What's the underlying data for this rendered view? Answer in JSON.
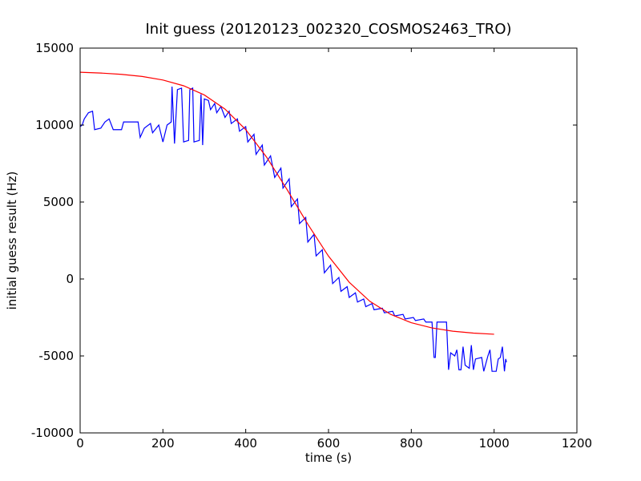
{
  "chart_data": {
    "type": "line",
    "title": "Init guess (20120123_002320_COSMOS2463_TRO)",
    "xlabel": "time (s)",
    "ylabel": "initial guess result (Hz)",
    "xlim": [
      0,
      1200
    ],
    "xticks": [
      0,
      200,
      400,
      600,
      800,
      1000,
      1200
    ],
    "ylim": [
      -10000,
      15000
    ],
    "yticks": [
      -10000,
      -5000,
      0,
      5000,
      10000,
      15000
    ],
    "grid": false,
    "series": [
      {
        "color": "#0000ff",
        "x": [
          0,
          5,
          10,
          20,
          30,
          35,
          50,
          60,
          70,
          80,
          100,
          105,
          140,
          145,
          155,
          170,
          175,
          190,
          200,
          210,
          220,
          222,
          228,
          235,
          245,
          250,
          262,
          265,
          272,
          275,
          288,
          292,
          296,
          300,
          310,
          315,
          325,
          330,
          340,
          350,
          360,
          365,
          380,
          385,
          400,
          405,
          420,
          425,
          440,
          445,
          460,
          470,
          485,
          490,
          505,
          510,
          525,
          530,
          545,
          550,
          565,
          570,
          585,
          590,
          605,
          610,
          625,
          630,
          645,
          650,
          665,
          670,
          685,
          690,
          705,
          710,
          730,
          735,
          755,
          760,
          780,
          785,
          805,
          810,
          830,
          835,
          850,
          855,
          858,
          862,
          885,
          890,
          895,
          905,
          910,
          915,
          920,
          925,
          930,
          940,
          945,
          950,
          955,
          970,
          975,
          985,
          990,
          995,
          1005,
          1010,
          1015,
          1020,
          1025,
          1028,
          1030
        ],
        "values": [
          9900,
          10000,
          10400,
          10800,
          10900,
          9700,
          9800,
          10200,
          10400,
          9700,
          9700,
          10200,
          10200,
          9200,
          9800,
          10100,
          9500,
          10000,
          8900,
          10000,
          10200,
          12500,
          8800,
          12300,
          12400,
          8900,
          9000,
          12300,
          12400,
          8900,
          9000,
          12000,
          8700,
          11700,
          11600,
          11000,
          11400,
          10800,
          11200,
          10500,
          10900,
          10100,
          10400,
          9600,
          9900,
          8900,
          9400,
          8100,
          8700,
          7400,
          8000,
          6600,
          7200,
          5900,
          6500,
          4700,
          5200,
          3600,
          4000,
          2400,
          2900,
          1500,
          1900,
          400,
          900,
          -300,
          100,
          -800,
          -500,
          -1200,
          -900,
          -1500,
          -1300,
          -1800,
          -1600,
          -2000,
          -1900,
          -2200,
          -2100,
          -2400,
          -2300,
          -2600,
          -2500,
          -2700,
          -2600,
          -2800,
          -2800,
          -5100,
          -5100,
          -2800,
          -2800,
          -5900,
          -4800,
          -5000,
          -4600,
          -5900,
          -5900,
          -4400,
          -5600,
          -5800,
          -4300,
          -5900,
          -5200,
          -5100,
          -6000,
          -5000,
          -4600,
          -6000,
          -6000,
          -5200,
          -5100,
          -4400,
          -6000,
          -5200,
          -5400
        ]
      },
      {
        "color": "#ff0000",
        "x": [
          0,
          50,
          100,
          150,
          200,
          250,
          300,
          350,
          400,
          450,
          500,
          550,
          600,
          650,
          700,
          750,
          800,
          850,
          900,
          950,
          1000
        ],
        "values": [
          13430,
          13380,
          13296,
          13158,
          12927,
          12552,
          11955,
          11038,
          9706,
          7930,
          5803,
          3557,
          1481,
          -211,
          -1452,
          -2296,
          -2844,
          -3182,
          -3391,
          -3516,
          -3590
        ]
      }
    ]
  }
}
